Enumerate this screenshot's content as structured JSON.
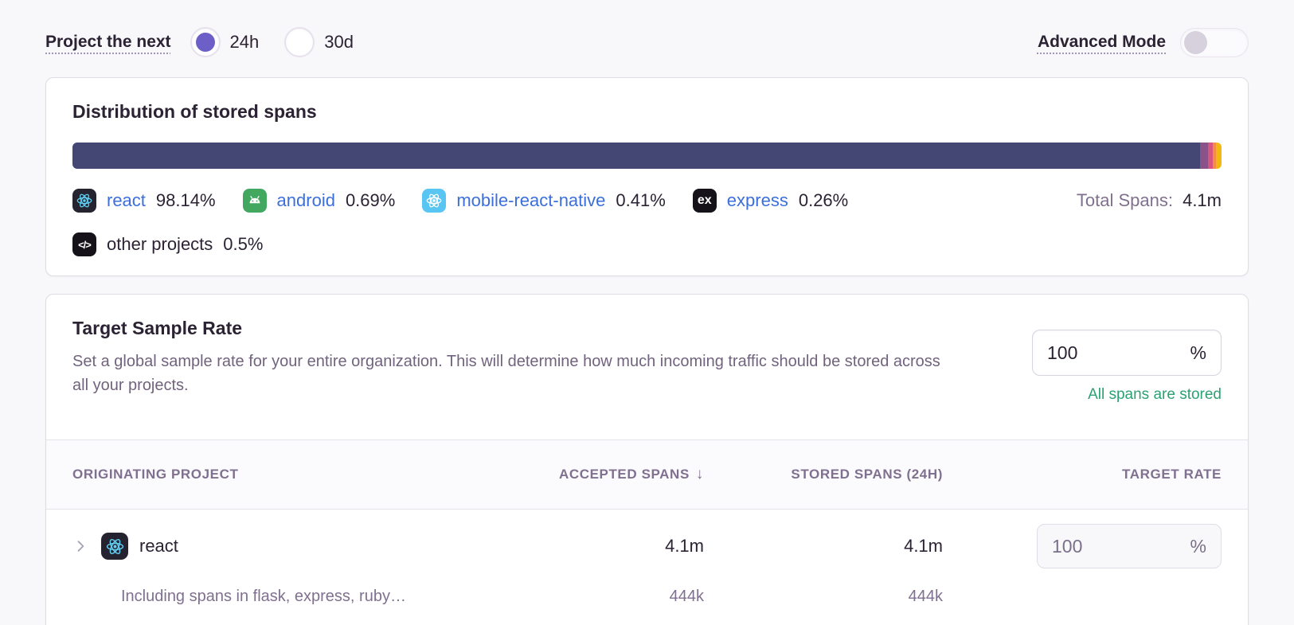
{
  "topbar": {
    "period_label": "Project the next",
    "options": [
      {
        "label": "24h",
        "selected": true
      },
      {
        "label": "30d",
        "selected": false
      }
    ],
    "advanced_mode_label": "Advanced Mode",
    "advanced_mode_on": false
  },
  "distribution_card": {
    "title": "Distribution of stored spans",
    "total_label": "Total Spans:",
    "total_value": "4.1m",
    "segments": [
      {
        "name": "react",
        "pct": 98.14,
        "color": "#444674"
      },
      {
        "name": "android",
        "pct": 0.69,
        "color": "#895289"
      },
      {
        "name": "mobile-react-native",
        "pct": 0.41,
        "color": "#d6567f"
      },
      {
        "name": "express",
        "pct": 0.26,
        "color": "#f58c46"
      },
      {
        "name": "other projects",
        "pct": 0.5,
        "color": "#f2b712"
      }
    ],
    "legend": [
      {
        "name": "react",
        "pct_label": "98.14%"
      },
      {
        "name": "android",
        "pct_label": "0.69%"
      },
      {
        "name": "mobile-react-native",
        "pct_label": "0.41%"
      },
      {
        "name": "express",
        "pct_label": "0.26%"
      },
      {
        "name": "other projects",
        "pct_label": "0.5%"
      }
    ]
  },
  "sample_rate_card": {
    "title": "Target Sample Rate",
    "description": "Set a global sample rate for your entire organization. This will determine how much incoming traffic should be stored across all your projects.",
    "rate_input": {
      "value": "100",
      "suffix": "%"
    },
    "status_text": "All spans are stored",
    "table": {
      "headers": [
        "Originating Project",
        "Accepted Spans",
        "Stored Spans (24h)",
        "Target Rate"
      ],
      "rows": [
        {
          "project": "react",
          "accepted": "4.1m",
          "stored": "4.1m",
          "rate": {
            "value": "100",
            "suffix": "%"
          },
          "subrow": {
            "label": "Including spans in flask, express, ruby…",
            "accepted": "444k",
            "stored": "444k"
          }
        }
      ]
    }
  },
  "icons": {
    "express_label": "ex",
    "code_label": "</>",
    "sort_desc": "↓"
  },
  "colors": {
    "accent_purple": "#6c5fc7",
    "link_blue": "#3b6fdb",
    "status_green": "#2ba174",
    "bar_primary": "#444674"
  }
}
